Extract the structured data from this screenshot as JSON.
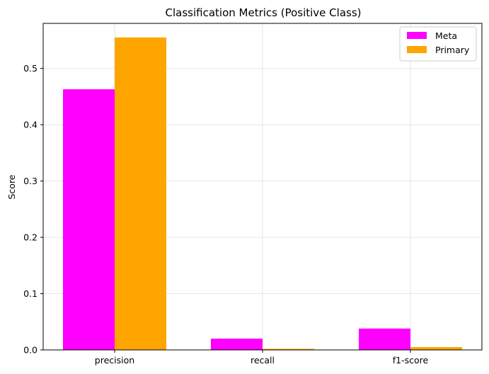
{
  "chart_data": {
    "type": "bar",
    "title": "Classification Metrics (Positive Class)",
    "xlabel": "",
    "ylabel": "Score",
    "categories": [
      "precision",
      "recall",
      "f1-score"
    ],
    "series": [
      {
        "name": "Meta",
        "color": "#ff00ff",
        "values": [
          0.463,
          0.02,
          0.038
        ]
      },
      {
        "name": "Primary",
        "color": "#ffa500",
        "values": [
          0.555,
          0.002,
          0.005
        ]
      }
    ],
    "ylim": [
      0,
      0.58
    ],
    "yticks": [
      0.0,
      0.1,
      0.2,
      0.3,
      0.4,
      0.5
    ],
    "ytick_labels": [
      "0.0",
      "0.1",
      "0.2",
      "0.3",
      "0.4",
      "0.5"
    ],
    "grid": true,
    "legend_position": "top-right"
  }
}
